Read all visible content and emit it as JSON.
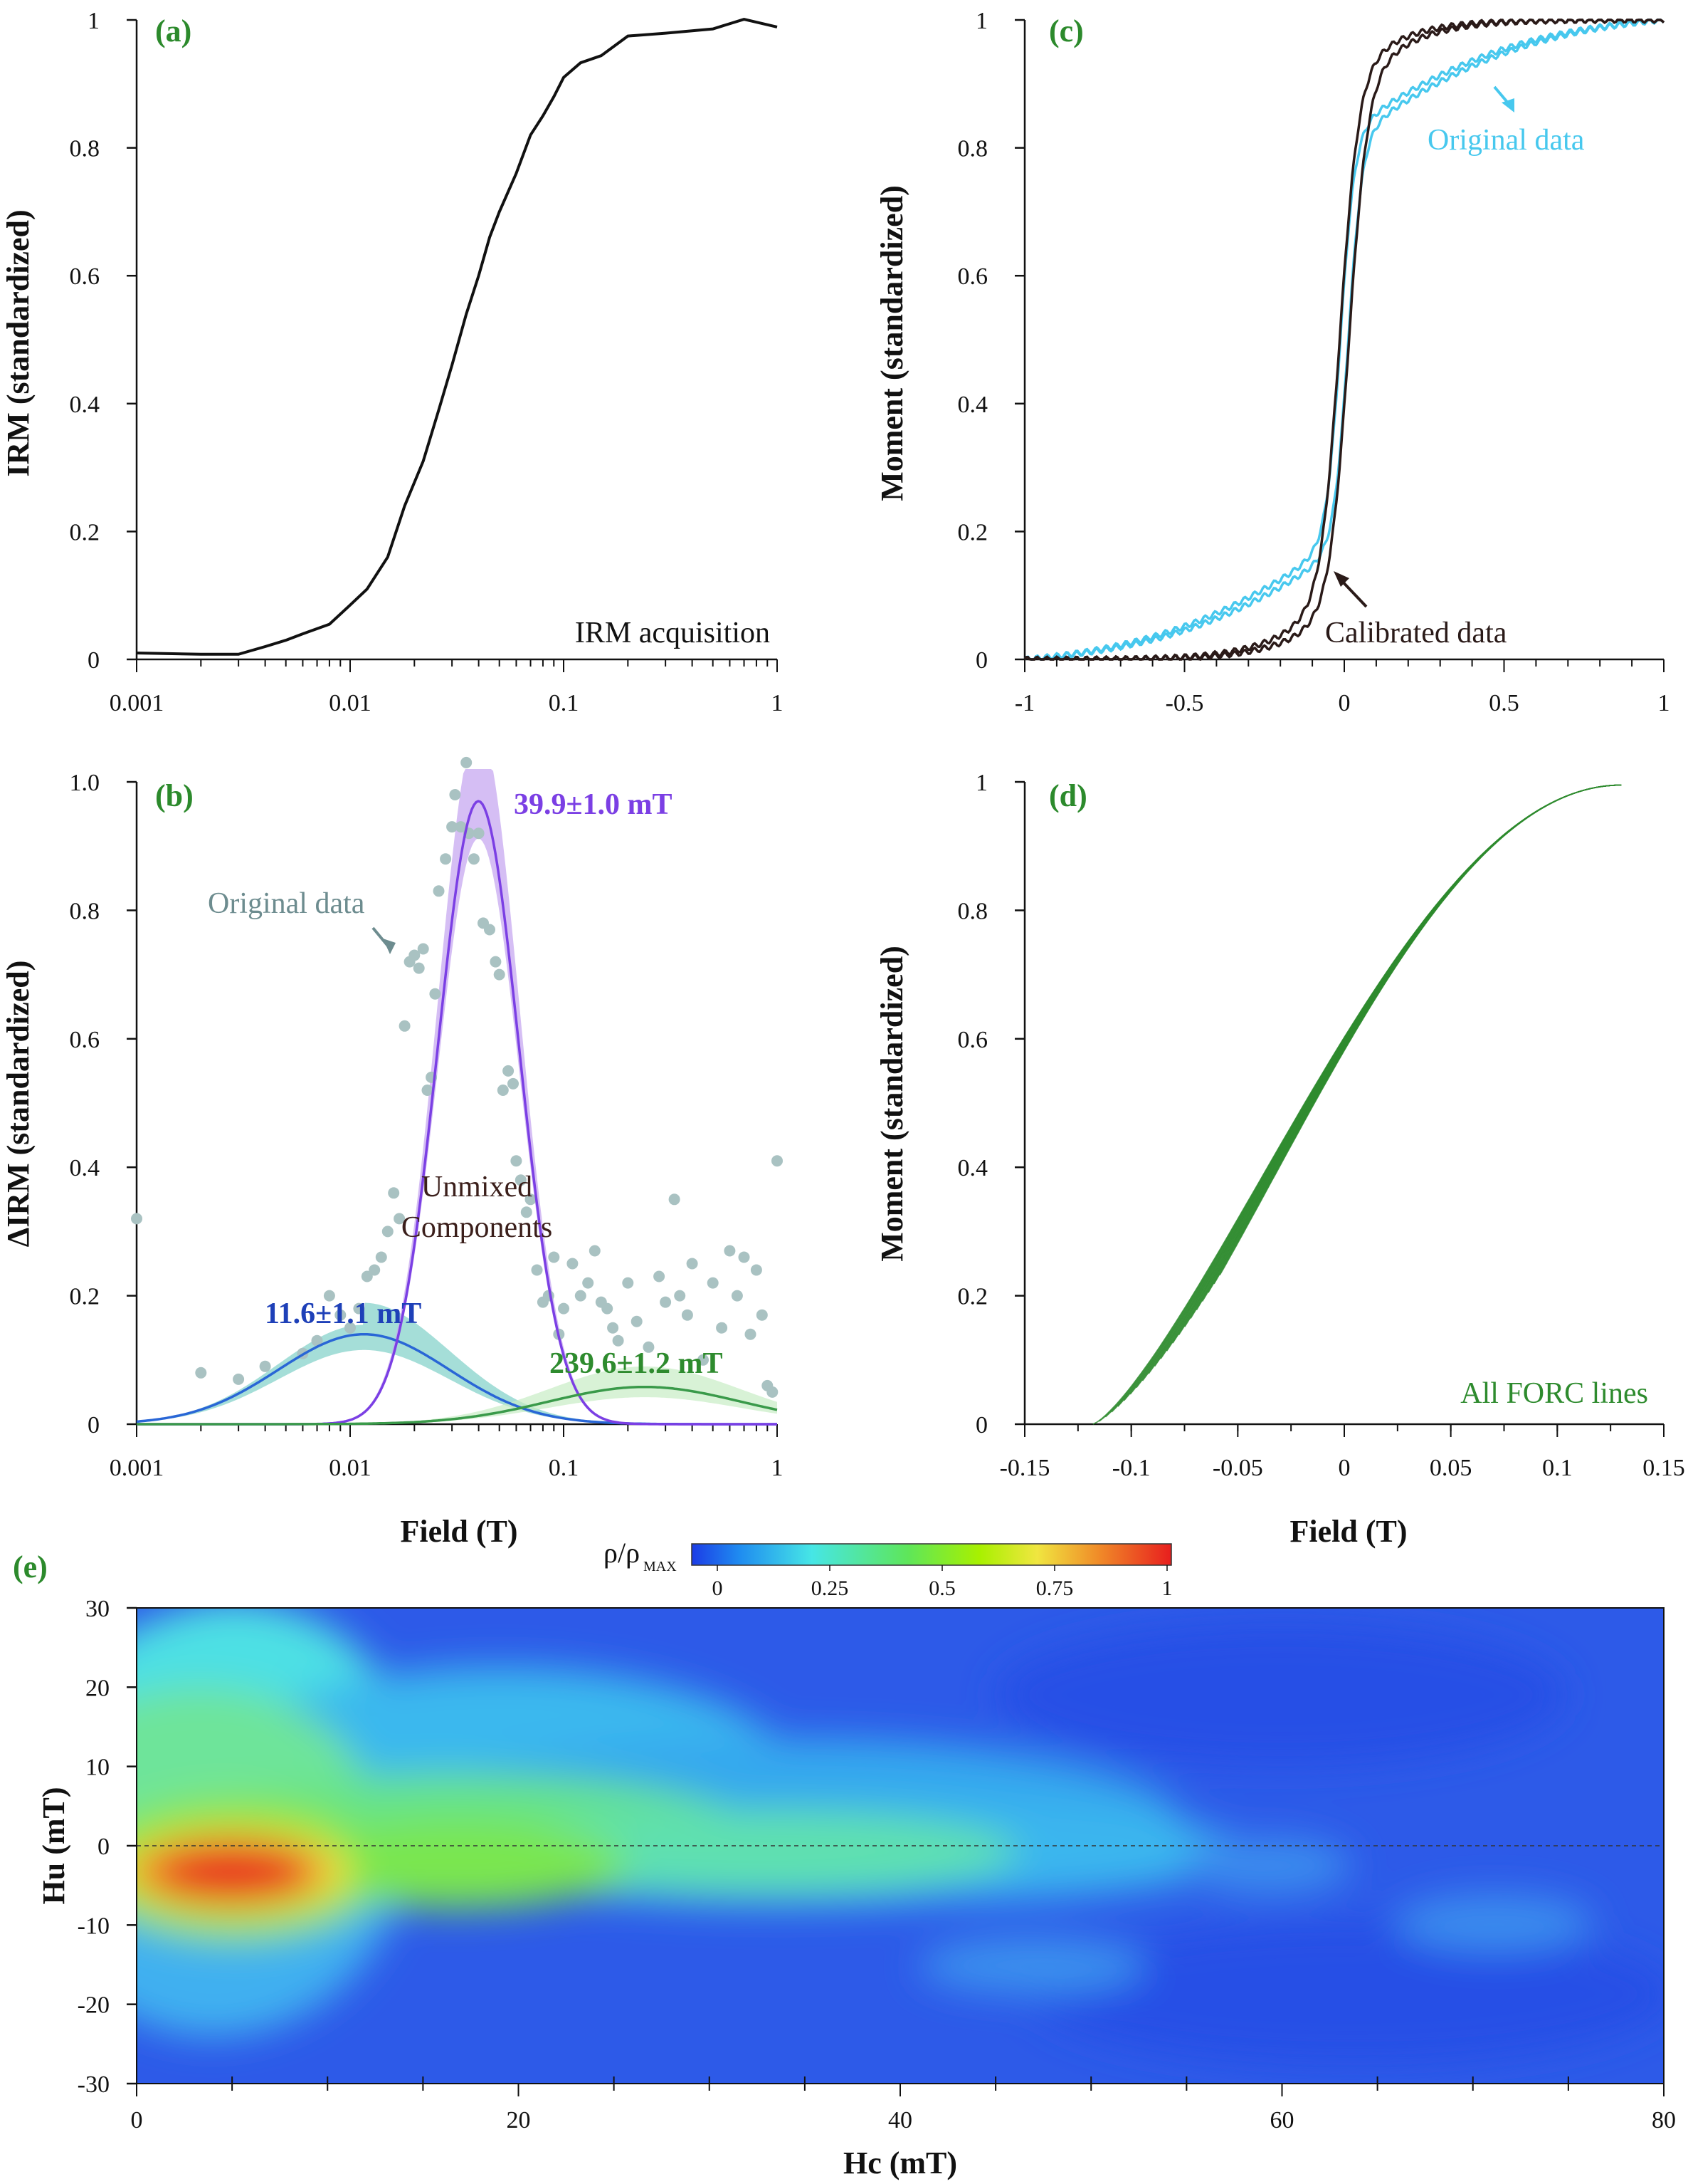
{
  "chart_data": [
    {
      "id": "a",
      "type": "line",
      "panel_label": "(a)",
      "ylabel": "IRM (standardized)",
      "xlabel": "",
      "x_scale": "log",
      "xlim": [
        0.001,
        1
      ],
      "ylim": [
        0,
        1
      ],
      "x_ticks": [
        "0.001",
        "0.01",
        "0.1",
        "1"
      ],
      "y_ticks": [
        "0",
        "0.2",
        "0.4",
        "0.6",
        "0.8",
        "1"
      ],
      "annotation": "IRM acquisition",
      "series": [
        {
          "color": "#111111",
          "x": [
            0.001,
            0.002,
            0.003,
            0.004,
            0.005,
            0.006,
            0.008,
            0.01,
            0.012,
            0.015,
            0.018,
            0.022,
            0.026,
            0.03,
            0.035,
            0.04,
            0.045,
            0.05,
            0.06,
            0.07,
            0.08,
            0.09,
            0.1,
            0.12,
            0.15,
            0.2,
            0.3,
            0.5,
            0.7,
            1
          ],
          "y": [
            0.01,
            0.008,
            0.008,
            0.02,
            0.03,
            0.04,
            0.055,
            0.085,
            0.11,
            0.16,
            0.24,
            0.31,
            0.39,
            0.46,
            0.54,
            0.6,
            0.66,
            0.7,
            0.76,
            0.82,
            0.85,
            0.88,
            0.91,
            0.93,
            0.95,
            0.97,
            0.98,
            0.99,
            0.995,
            0.993
          ]
        }
      ]
    },
    {
      "id": "b",
      "type": "line",
      "panel_label": "(b)",
      "ylabel": "ΔIRM (standardized)",
      "xlabel": "Field (T)",
      "x_scale": "log",
      "xlim": [
        0.001,
        1
      ],
      "ylim": [
        0,
        1.0
      ],
      "x_ticks": [
        "0.001",
        "0.01",
        "0.1",
        "1"
      ],
      "y_ticks": [
        "0",
        "0.2",
        "0.4",
        "0.6",
        "0.8",
        "1.0"
      ],
      "annotations": {
        "original": "Original data",
        "unmixed_1": "Unmixed",
        "unmixed_2": "Components",
        "comp1": "11.6±1.1 mT",
        "comp2": "39.9±1.0 mT",
        "comp3": "239.6±1.2 mT"
      },
      "scatter": {
        "color": "#a9c2c2",
        "x": [
          0.001,
          0.002,
          0.003,
          0.004,
          0.006,
          0.007,
          0.008,
          0.009,
          0.01,
          0.011,
          0.012,
          0.013,
          0.014,
          0.015,
          0.016,
          0.017,
          0.018,
          0.019,
          0.02,
          0.021,
          0.022,
          0.023,
          0.024,
          0.025,
          0.026,
          0.028,
          0.03,
          0.031,
          0.033,
          0.035,
          0.036,
          0.038,
          0.04,
          0.042,
          0.045,
          0.048,
          0.05,
          0.052,
          0.055,
          0.058,
          0.06,
          0.063,
          0.067,
          0.07,
          0.075,
          0.08,
          0.085,
          0.09,
          0.095,
          0.1,
          0.11,
          0.12,
          0.13,
          0.14,
          0.15,
          0.16,
          0.17,
          0.18,
          0.2,
          0.22,
          0.25,
          0.28,
          0.3,
          0.33,
          0.35,
          0.38,
          0.4,
          0.45,
          0.5,
          0.55,
          0.6,
          0.65,
          0.7,
          0.75,
          0.8,
          0.85,
          0.9,
          0.95,
          1.0
        ],
        "y": [
          0.32,
          0.08,
          0.07,
          0.09,
          0.11,
          0.13,
          0.2,
          0.17,
          0.15,
          0.18,
          0.23,
          0.24,
          0.26,
          0.3,
          0.36,
          0.32,
          0.62,
          0.72,
          0.73,
          0.71,
          0.74,
          0.52,
          0.54,
          0.67,
          0.83,
          0.88,
          0.93,
          0.98,
          0.93,
          1.03,
          0.92,
          0.88,
          0.92,
          0.78,
          0.77,
          0.72,
          0.7,
          0.52,
          0.55,
          0.53,
          0.41,
          0.38,
          0.33,
          0.35,
          0.24,
          0.19,
          0.2,
          0.26,
          0.14,
          0.18,
          0.25,
          0.2,
          0.22,
          0.27,
          0.19,
          0.18,
          0.15,
          0.13,
          0.22,
          0.16,
          0.12,
          0.23,
          0.19,
          0.35,
          0.2,
          0.17,
          0.25,
          0.1,
          0.22,
          0.15,
          0.27,
          0.2,
          0.26,
          0.14,
          0.24,
          0.17,
          0.06,
          0.05,
          0.41
        ]
      },
      "components": [
        {
          "name": "11.6±1.1 mT",
          "color": "#2966d6",
          "band_color": "#7fd0c8",
          "center": 0.0116,
          "sigma": 0.4,
          "amp": 0.14
        },
        {
          "name": "39.9±1.0 mT",
          "color": "#7b3fe4",
          "band_color": "#c7a8f0",
          "center": 0.0399,
          "sigma": 0.19,
          "amp": 0.97
        },
        {
          "name": "239.6±1.2 mT",
          "color": "#3a9a4a",
          "band_color": "#c8ecc4",
          "center": 0.2396,
          "sigma": 0.45,
          "amp": 0.058
        }
      ]
    },
    {
      "id": "c",
      "type": "line",
      "panel_label": "(c)",
      "ylabel": "Moment (standardized)",
      "xlabel": "",
      "xlim": [
        -1,
        1
      ],
      "ylim": [
        0,
        1
      ],
      "x_ticks": [
        "-1",
        "-0.5",
        "0",
        "0.5",
        "1"
      ],
      "y_ticks": [
        "0",
        "0.2",
        "0.4",
        "0.6",
        "0.8",
        "1"
      ],
      "series": [
        {
          "name": "Original data",
          "color": "#47c8ee"
        },
        {
          "name": "Calibrated data",
          "color": "#2a1a18"
        }
      ]
    },
    {
      "id": "d",
      "type": "line",
      "panel_label": "(d)",
      "ylabel": "Moment (standardized)",
      "xlabel": "Field (T)",
      "xlim": [
        -0.15,
        0.15
      ],
      "ylim": [
        0,
        1
      ],
      "x_ticks": [
        "-0.15",
        "-0.1",
        "-0.05",
        "0",
        "0.05",
        "0.1",
        "0.15"
      ],
      "y_ticks": [
        "0",
        "0.2",
        "0.4",
        "0.6",
        "0.8",
        "1"
      ],
      "annotation": "All FORC lines",
      "series_color": "#2e8b2e"
    },
    {
      "id": "e",
      "type": "heatmap",
      "panel_label": "(e)",
      "xlabel": "Hc (mT)",
      "ylabel": "Hu (mT)",
      "xlim": [
        0,
        80
      ],
      "ylim": [
        -30,
        30
      ],
      "x_ticks": [
        "0",
        "20",
        "40",
        "60",
        "80"
      ],
      "y_ticks": [
        "30",
        "20",
        "10",
        "0",
        "-10",
        "-20",
        "-30"
      ],
      "colorbar": {
        "label": "ρ/ρ",
        "label_sub": "MAX",
        "ticks": [
          "0",
          "0.25",
          "0.5",
          "0.75",
          "1"
        ],
        "colors": [
          "#1c3ce6",
          "#1f8cf0",
          "#46e6e6",
          "#5ee65a",
          "#a8f000",
          "#f0e640",
          "#f08a28",
          "#e81e1e"
        ]
      }
    }
  ]
}
